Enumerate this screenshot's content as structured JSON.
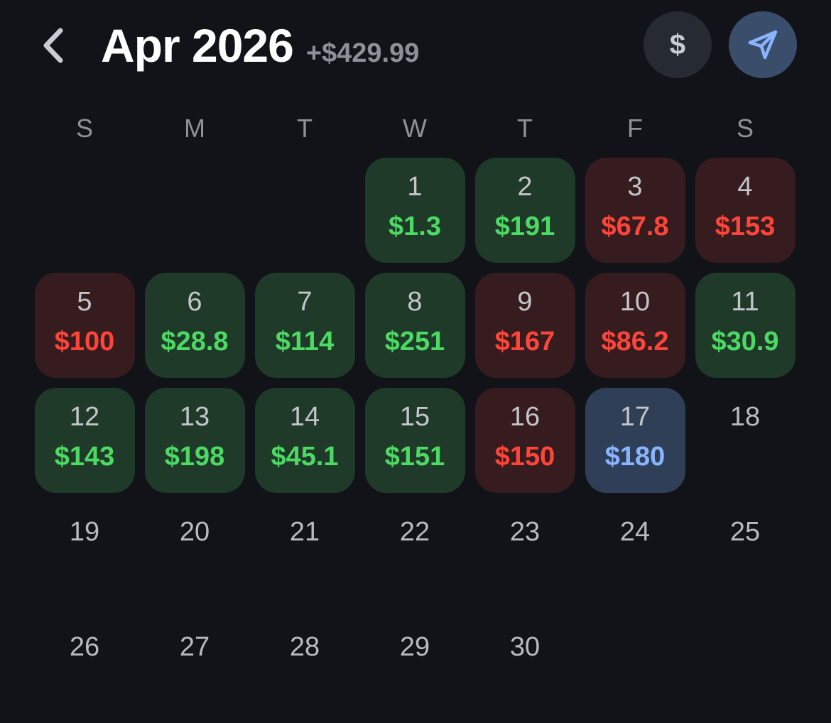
{
  "header": {
    "back_icon": "chevron-left-icon",
    "title": "Apr 2026",
    "total": "+$429.99",
    "currency_button_label": "$",
    "send_icon": "paper-plane-icon"
  },
  "weekdays": [
    "S",
    "M",
    "T",
    "W",
    "T",
    "F",
    "S"
  ],
  "colors": {
    "background": "#111318",
    "gain_bg": "#1f3a28",
    "gain_text": "#4cd964",
    "loss_bg": "#361c1e",
    "loss_text": "#ff453a",
    "today_bg": "#2f3f57",
    "today_text": "#8ab4ff"
  },
  "first_weekday_index": 3,
  "days": [
    {
      "day": "1",
      "amount": "$1.3",
      "status": "gain"
    },
    {
      "day": "2",
      "amount": "$191",
      "status": "gain"
    },
    {
      "day": "3",
      "amount": "$67.8",
      "status": "loss"
    },
    {
      "day": "4",
      "amount": "$153",
      "status": "loss"
    },
    {
      "day": "5",
      "amount": "$100",
      "status": "loss"
    },
    {
      "day": "6",
      "amount": "$28.8",
      "status": "gain"
    },
    {
      "day": "7",
      "amount": "$114",
      "status": "gain"
    },
    {
      "day": "8",
      "amount": "$251",
      "status": "gain"
    },
    {
      "day": "9",
      "amount": "$167",
      "status": "loss"
    },
    {
      "day": "10",
      "amount": "$86.2",
      "status": "loss"
    },
    {
      "day": "11",
      "amount": "$30.9",
      "status": "gain"
    },
    {
      "day": "12",
      "amount": "$143",
      "status": "gain"
    },
    {
      "day": "13",
      "amount": "$198",
      "status": "gain"
    },
    {
      "day": "14",
      "amount": "$45.1",
      "status": "gain"
    },
    {
      "day": "15",
      "amount": "$151",
      "status": "gain"
    },
    {
      "day": "16",
      "amount": "$150",
      "status": "loss"
    },
    {
      "day": "17",
      "amount": "$180",
      "status": "today"
    },
    {
      "day": "18",
      "amount": "",
      "status": "empty"
    },
    {
      "day": "19",
      "amount": "",
      "status": "empty"
    },
    {
      "day": "20",
      "amount": "",
      "status": "empty"
    },
    {
      "day": "21",
      "amount": "",
      "status": "empty"
    },
    {
      "day": "22",
      "amount": "",
      "status": "empty"
    },
    {
      "day": "23",
      "amount": "",
      "status": "empty"
    },
    {
      "day": "24",
      "amount": "",
      "status": "empty"
    },
    {
      "day": "25",
      "amount": "",
      "status": "empty"
    },
    {
      "day": "26",
      "amount": "",
      "status": "empty"
    },
    {
      "day": "27",
      "amount": "",
      "status": "empty"
    },
    {
      "day": "28",
      "amount": "",
      "status": "empty"
    },
    {
      "day": "29",
      "amount": "",
      "status": "empty"
    },
    {
      "day": "30",
      "amount": "",
      "status": "empty"
    }
  ]
}
